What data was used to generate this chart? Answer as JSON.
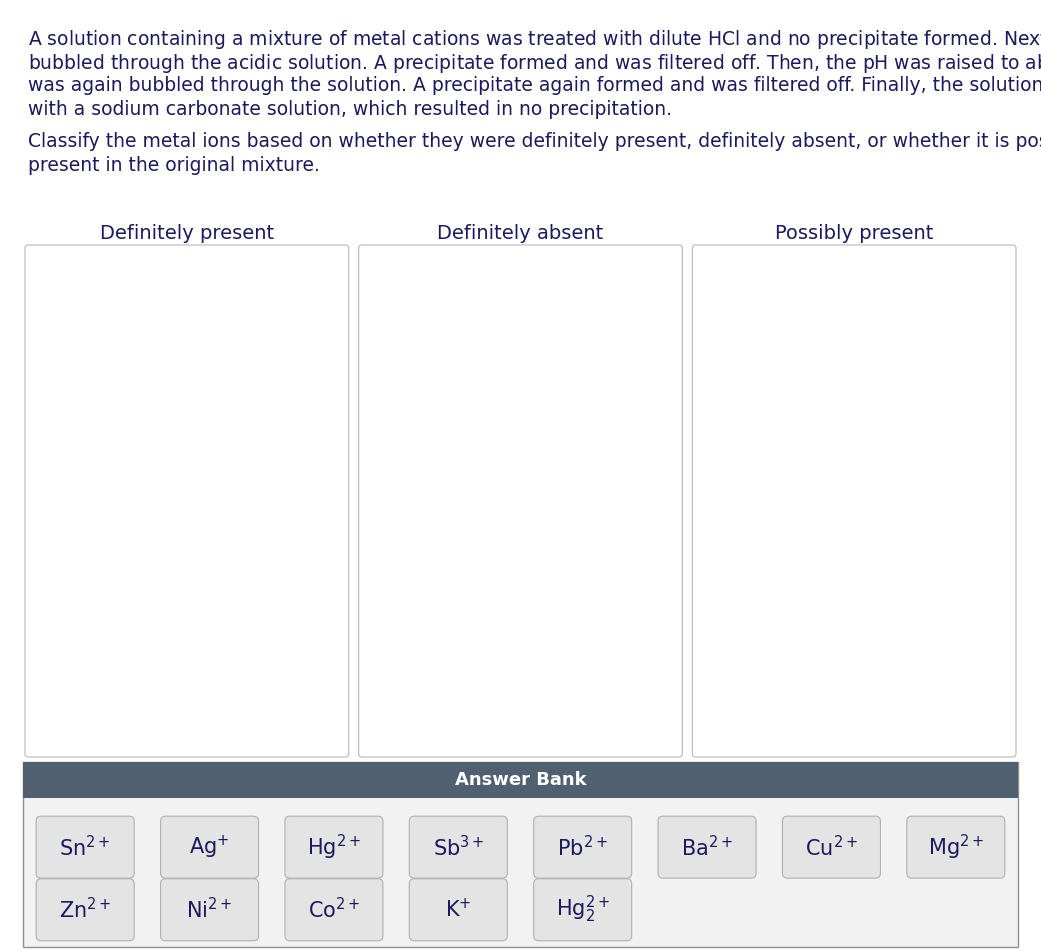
{
  "background_color": "#ffffff",
  "text_color": "#1a1a5e",
  "box_labels": [
    "Definitely present",
    "Definitely absent",
    "Possibly present"
  ],
  "answer_bank_header": "Answer Bank",
  "answer_bank_bg": "#506070",
  "answer_bank_text_color": "#ffffff",
  "answer_bank_area_bg": "#f0f0f0",
  "ions_row1": [
    [
      "Sn",
      "2+"
    ],
    [
      "Ag",
      "+"
    ],
    [
      "Hg",
      "2+"
    ],
    [
      "Sb",
      "3+"
    ],
    [
      "Pb",
      "2+"
    ],
    [
      "Ba",
      "2+"
    ],
    [
      "Cu",
      "2+"
    ],
    [
      "Mg",
      "2+"
    ]
  ],
  "ions_row2": [
    [
      "Zn",
      "2+"
    ],
    [
      "Ni",
      "2+"
    ],
    [
      "Co",
      "2+"
    ],
    [
      "K",
      "+"
    ],
    [
      "Hg2",
      "2+"
    ]
  ],
  "ion_box_color": "#e4e4e4",
  "ion_box_border": "#b0b0b0",
  "ion_text_color": "#1a1a5e",
  "font_size_body": 13.5,
  "font_size_box_label": 14,
  "font_size_ion": 15,
  "font_size_answer_bank": 13
}
